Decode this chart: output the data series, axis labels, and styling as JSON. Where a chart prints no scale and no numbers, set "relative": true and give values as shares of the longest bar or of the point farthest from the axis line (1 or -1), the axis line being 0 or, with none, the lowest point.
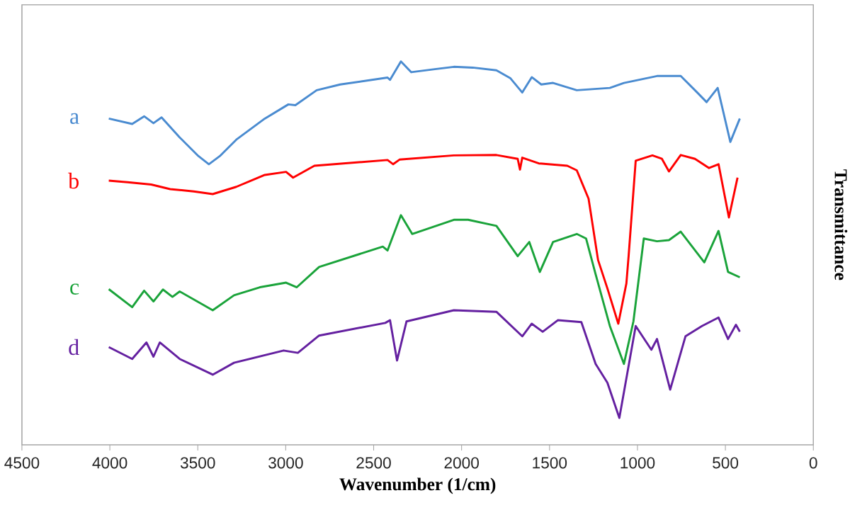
{
  "chart_data": {
    "type": "line",
    "xlabel": "Wavenumber (1/cm)",
    "ylabel": "Transmittance",
    "relative": true,
    "xlim": [
      4500,
      0
    ],
    "xticks": [
      4500,
      4000,
      3500,
      3000,
      2500,
      2000,
      1500,
      1000,
      500,
      0
    ],
    "series": [
      {
        "name": "a",
        "color": "#4a8bd0",
        "x": [
          4006,
          3873,
          3805,
          3752,
          3706,
          3603,
          3496,
          3437,
          3375,
          3281,
          3119,
          2985,
          2945,
          2824,
          2690,
          2421,
          2407,
          2345,
          2286,
          2152,
          2044,
          1937,
          1802,
          1722,
          1655,
          1601,
          1547,
          1480,
          1345,
          1157,
          1077,
          889,
          754,
          660,
          607,
          544,
          472,
          418
        ],
        "values": [
          0.851,
          0.837,
          0.857,
          0.839,
          0.854,
          0.802,
          0.753,
          0.732,
          0.753,
          0.796,
          0.851,
          0.888,
          0.886,
          0.925,
          0.94,
          0.958,
          0.952,
          1,
          0.972,
          0.98,
          0.986,
          0.984,
          0.977,
          0.956,
          0.919,
          0.959,
          0.94,
          0.944,
          0.925,
          0.931,
          0.944,
          0.962,
          0.962,
          0.919,
          0.894,
          0.931,
          0.79,
          0.851
        ]
      },
      {
        "name": "b",
        "color": "#ff0000",
        "x": [
          4006,
          3899,
          3765,
          3657,
          3523,
          3415,
          3281,
          3119,
          2998,
          2958,
          2837,
          2421,
          2389,
          2353,
          2044,
          1802,
          1681,
          1668,
          1655,
          1561,
          1399,
          1345,
          1278,
          1224,
          1171,
          1109,
          1063,
          1050,
          1010,
          915,
          861,
          821,
          754,
          673,
          593,
          539,
          480,
          431
        ],
        "values": [
          0.689,
          0.685,
          0.679,
          0.667,
          0.661,
          0.654,
          0.673,
          0.704,
          0.712,
          0.697,
          0.728,
          0.743,
          0.732,
          0.744,
          0.755,
          0.756,
          0.746,
          0.718,
          0.749,
          0.734,
          0.728,
          0.716,
          0.642,
          0.482,
          0.408,
          0.316,
          0.421,
          0.494,
          0.741,
          0.755,
          0.746,
          0.713,
          0.756,
          0.746,
          0.722,
          0.732,
          0.593,
          0.697
        ]
      },
      {
        "name": "c",
        "color": "#1aa33a",
        "x": [
          4006,
          3873,
          3805,
          3752,
          3698,
          3644,
          3603,
          3415,
          3294,
          3147,
          2998,
          2937,
          2810,
          2448,
          2421,
          2345,
          2281,
          2044,
          1963,
          1802,
          1681,
          1615,
          1555,
          1480,
          1345,
          1292,
          1238,
          1157,
          1077,
          1023,
          964,
          889,
          821,
          754,
          620,
          539,
          485,
          418
        ],
        "values": [
          0.406,
          0.359,
          0.402,
          0.374,
          0.405,
          0.386,
          0.4,
          0.351,
          0.39,
          0.411,
          0.423,
          0.411,
          0.464,
          0.517,
          0.507,
          0.599,
          0.55,
          0.587,
          0.587,
          0.571,
          0.492,
          0.529,
          0.451,
          0.529,
          0.55,
          0.538,
          0.445,
          0.31,
          0.211,
          0.322,
          0.538,
          0.531,
          0.534,
          0.556,
          0.476,
          0.558,
          0.451,
          0.437
        ]
      },
      {
        "name": "d",
        "color": "#6420a0",
        "x": [
          4006,
          3873,
          3792,
          3752,
          3716,
          3603,
          3415,
          3294,
          3012,
          2931,
          2810,
          2434,
          2407,
          2367,
          2313,
          2044,
          1802,
          1655,
          1601,
          1539,
          1453,
          1319,
          1238,
          1171,
          1103,
          1010,
          921,
          889,
          814,
          727,
          633,
          539,
          485,
          440,
          418
        ],
        "values": [
          0.255,
          0.224,
          0.267,
          0.23,
          0.267,
          0.224,
          0.183,
          0.214,
          0.246,
          0.24,
          0.285,
          0.318,
          0.325,
          0.22,
          0.322,
          0.351,
          0.347,
          0.283,
          0.316,
          0.295,
          0.325,
          0.32,
          0.211,
          0.162,
          0.07,
          0.31,
          0.248,
          0.276,
          0.144,
          0.283,
          0.31,
          0.332,
          0.276,
          0.313,
          0.295
        ]
      }
    ]
  }
}
